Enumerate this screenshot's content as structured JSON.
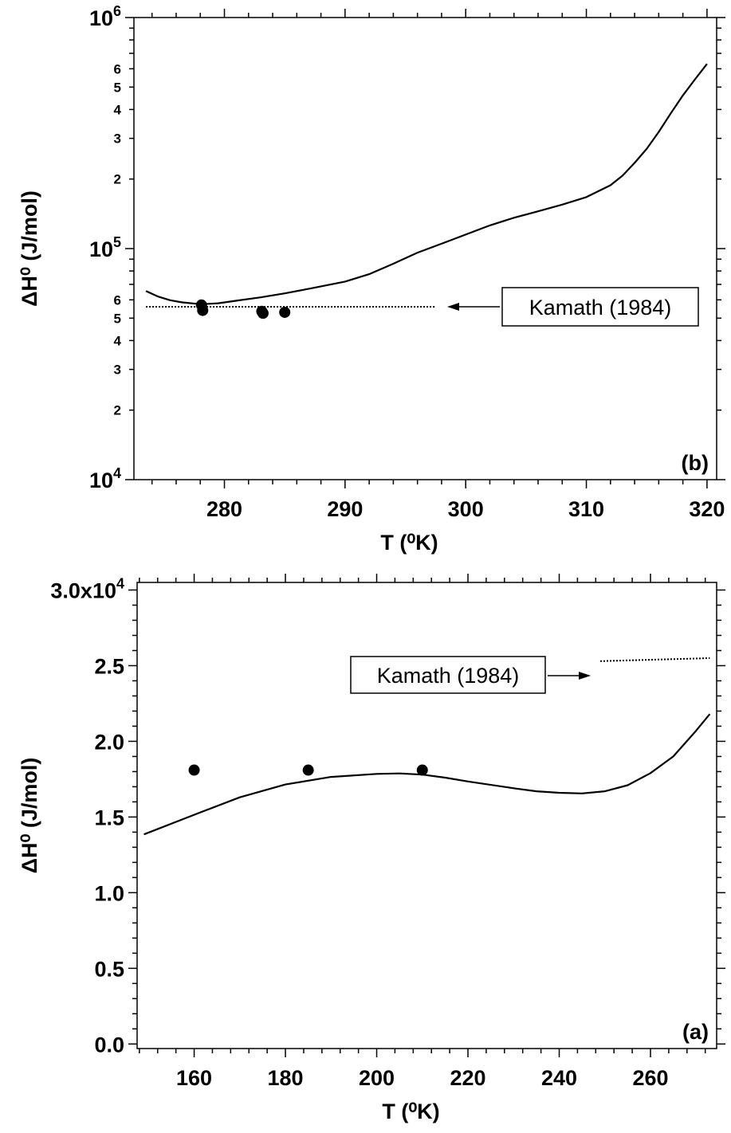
{
  "chart_data": [
    {
      "panel": "(b)",
      "type": "line",
      "xlabel": "T (⁰K)",
      "ylabel": "ΔH⁰ (J/mol)",
      "xlim": [
        272.5,
        320.8
      ],
      "ylim": [
        10000,
        1000000
      ],
      "y_scale": "log",
      "x_ticks": [
        280,
        290,
        300,
        310,
        320
      ],
      "x_tick_labels": [
        "280",
        "290",
        "300",
        "310",
        "320"
      ],
      "y_ticks": [
        10000,
        100000,
        1000000
      ],
      "y_tick_labels": [
        {
          "base": "10",
          "exp": "4"
        },
        {
          "base": "10",
          "exp": "5"
        },
        {
          "base": "10",
          "exp": "6"
        }
      ],
      "y_minor_labels": [
        "2",
        "3",
        "4",
        "5",
        "6"
      ],
      "series": [
        {
          "style": "solid",
          "x": [
            273.5,
            274.5,
            275.5,
            276.5,
            277.5,
            278.3,
            279.5,
            281,
            283,
            285,
            287,
            290,
            292,
            294,
            296,
            298,
            300,
            302,
            304,
            306,
            308,
            310,
            312,
            313,
            314,
            315,
            316,
            317,
            318,
            319,
            320
          ],
          "y": [
            65500,
            62000,
            59800,
            58500,
            57800,
            57500,
            58000,
            59500,
            61500,
            64000,
            67000,
            72000,
            77500,
            86000,
            96000,
            105000,
            115000,
            126000,
            136000,
            145000,
            155000,
            167000,
            188000,
            207000,
            235000,
            270000,
            320000,
            385000,
            460000,
            540000,
            630000
          ]
        },
        {
          "style": "dotted",
          "x": [
            273.5,
            297.5
          ],
          "y": [
            56000,
            56000
          ]
        },
        {
          "style": "points",
          "x": [
            278.1,
            278.2,
            283.1,
            283.2,
            285
          ],
          "y": [
            57000,
            54000,
            53500,
            52500,
            53000
          ]
        }
      ],
      "annotation": {
        "text": "Kamath (1984)"
      }
    },
    {
      "panel": "(a)",
      "type": "line",
      "xlabel": "T (⁰K)",
      "ylabel": "ΔH⁰ (J/mol)",
      "xlim": [
        147.5,
        274.5
      ],
      "ylim": [
        -300,
        30500
      ],
      "x_ticks": [
        160,
        180,
        200,
        220,
        240,
        260
      ],
      "x_tick_labels": [
        "160",
        "180",
        "200",
        "220",
        "240",
        "260"
      ],
      "y_ticks": [
        0,
        5000,
        10000,
        15000,
        20000,
        25000,
        30000
      ],
      "y_tick_labels": [
        "0.0",
        "0.5",
        "1.0",
        "1.5",
        "2.0",
        "2.5",
        "3.0x10"
      ],
      "y_top_exp": "4",
      "series": [
        {
          "style": "solid",
          "x": [
            149,
            160,
            170,
            180,
            190,
            200,
            205,
            210,
            215,
            220,
            230,
            235,
            240,
            245,
            250,
            255,
            260,
            265,
            270,
            273
          ],
          "y": [
            13850,
            15150,
            16300,
            17150,
            17650,
            17850,
            17880,
            17800,
            17600,
            17350,
            16900,
            16700,
            16600,
            16560,
            16700,
            17100,
            17900,
            19000,
            20700,
            21800
          ]
        },
        {
          "style": "dotted",
          "x": [
            249,
            273
          ],
          "y": [
            25300,
            25500
          ]
        },
        {
          "style": "points",
          "x": [
            160,
            185,
            210
          ],
          "y": [
            18100,
            18100,
            18100
          ]
        }
      ],
      "annotation": {
        "text": "Kamath (1984)"
      }
    }
  ]
}
